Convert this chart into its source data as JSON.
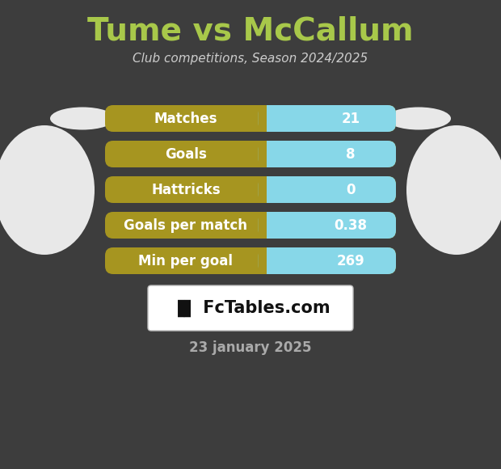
{
  "title": "Tume vs McCallum",
  "subtitle": "Club competitions, Season 2024/2025",
  "date": "23 january 2025",
  "watermark": " FcTables.com",
  "background_color": "#3d3d3d",
  "title_color": "#a8c84a",
  "subtitle_color": "#cccccc",
  "date_color": "#aaaaaa",
  "stats": [
    {
      "label": "Matches",
      "value": "21"
    },
    {
      "label": "Goals",
      "value": "8"
    },
    {
      "label": "Hattricks",
      "value": "0"
    },
    {
      "label": "Goals per match",
      "value": "0.38"
    },
    {
      "label": "Min per goal",
      "value": "269"
    }
  ],
  "bar_left_color": "#a69520",
  "bar_right_color": "#87d7e8",
  "bar_label_color": "#ffffff",
  "bar_value_color": "#ffffff",
  "left_badge_color": "#e8e8e8",
  "right_badge_color": "#e8e8e8",
  "top_oval_color": "#e8e8e8",
  "wm_bg": "#ffffff",
  "wm_text_color": "#111111"
}
